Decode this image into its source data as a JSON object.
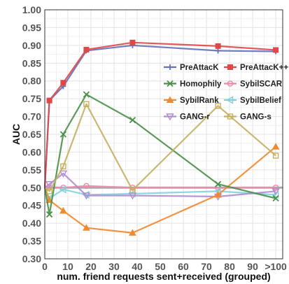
{
  "chart_data": {
    "type": "line",
    "xlabel": "num. friend requests sent+received (grouped)",
    "ylabel": "AUC",
    "x": [
      0,
      2,
      8,
      18,
      38,
      75,
      100
    ],
    "xticks": [
      0,
      10,
      20,
      30,
      40,
      50,
      60,
      70,
      80,
      90,
      100
    ],
    "xtick_labels": [
      "0",
      "10",
      "20",
      "30",
      "40",
      "50",
      "60",
      "70",
      "80",
      "90",
      ">100"
    ],
    "xlim": [
      0,
      103
    ],
    "ylim": [
      0.3,
      1.0
    ],
    "yticks": [
      0.3,
      0.35,
      0.4,
      0.45,
      0.5,
      0.55,
      0.6,
      0.65,
      0.7,
      0.75,
      0.8,
      0.85,
      0.9,
      0.95,
      1.0
    ],
    "ytick_labels": [
      "0.30",
      "0.35",
      "0.40",
      "0.45",
      "0.50",
      "0.55",
      "0.60",
      "0.65",
      "0.70",
      "0.75",
      "0.80",
      "0.85",
      "0.90",
      "0.95",
      "1.00"
    ],
    "grid": true,
    "legend": "right-top, 2 columns",
    "reference_line": {
      "y": 0.5,
      "color": "#999999"
    },
    "series": [
      {
        "name": "PreAttacK",
        "color": "#6470b8",
        "marker": "plus",
        "values": [
          0.5,
          0.745,
          0.785,
          0.885,
          0.9,
          0.885,
          0.883
        ]
      },
      {
        "name": "PreAttacK++",
        "color": "#e04848",
        "marker": "square",
        "values": [
          0.5,
          0.745,
          0.795,
          0.888,
          0.908,
          0.898,
          0.887
        ]
      },
      {
        "name": "Homophily",
        "color": "#4a8f4a",
        "marker": "x",
        "values": [
          0.5,
          0.425,
          0.65,
          0.762,
          0.69,
          0.51,
          0.47
        ]
      },
      {
        "name": "SybilSCAR",
        "color": "#ee88aa",
        "marker": "circle",
        "values": [
          0.5,
          0.5,
          0.5,
          0.505,
          0.5,
          0.5,
          0.5
        ]
      },
      {
        "name": "SybilRank",
        "color": "#f08a30",
        "marker": "triangle",
        "values": [
          0.5,
          0.465,
          0.435,
          0.387,
          0.373,
          0.48,
          0.615
        ]
      },
      {
        "name": "SybilBelief",
        "color": "#7fd3dd",
        "marker": "triangle-left",
        "values": [
          0.5,
          0.47,
          0.495,
          0.48,
          0.483,
          0.49,
          0.48
        ]
      },
      {
        "name": "GANG-r",
        "color": "#b08cd0",
        "marker": "triangle-down",
        "values": [
          0.5,
          0.51,
          0.54,
          0.478,
          0.478,
          0.475,
          0.49
        ]
      },
      {
        "name": "GANG-s",
        "color": "#c4b060",
        "marker": "square-open",
        "values": [
          0.5,
          0.49,
          0.56,
          0.735,
          0.493,
          0.73,
          0.59
        ]
      }
    ]
  }
}
